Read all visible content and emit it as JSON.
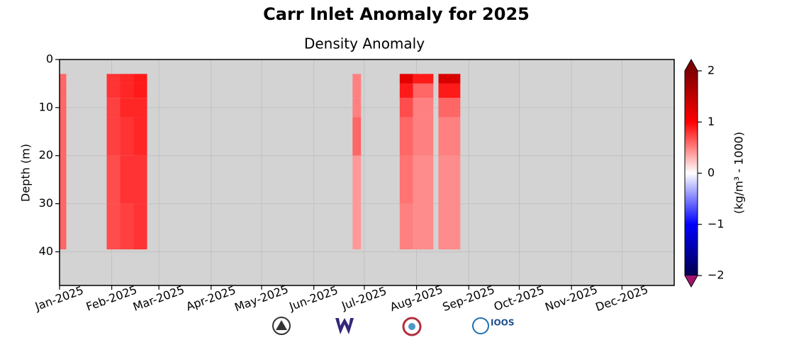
{
  "chart_data": {
    "type": "heatmap",
    "title": "Carr Inlet Anomaly for 2025",
    "subtitle": "Density Anomaly",
    "ylabel": "Depth (m)",
    "colorbar_label": "(kg/m³ - 1000)",
    "xlim": [
      "2025-01-01",
      "2026-01-01"
    ],
    "xticks": [
      {
        "value": "2025-01-01",
        "label": "Jan-2025"
      },
      {
        "value": "2025-02-01",
        "label": "Feb-2025"
      },
      {
        "value": "2025-03-01",
        "label": "Mar-2025"
      },
      {
        "value": "2025-04-01",
        "label": "Apr-2025"
      },
      {
        "value": "2025-05-01",
        "label": "May-2025"
      },
      {
        "value": "2025-06-01",
        "label": "Jun-2025"
      },
      {
        "value": "2025-07-01",
        "label": "Jul-2025"
      },
      {
        "value": "2025-08-01",
        "label": "Aug-2025"
      },
      {
        "value": "2025-09-01",
        "label": "Sep-2025"
      },
      {
        "value": "2025-10-01",
        "label": "Oct-2025"
      },
      {
        "value": "2025-11-01",
        "label": "Nov-2025"
      },
      {
        "value": "2025-12-01",
        "label": "Dec-2025"
      }
    ],
    "ylim": [
      0,
      47
    ],
    "yticks": [
      0,
      10,
      20,
      30,
      40
    ],
    "y_inverted": true,
    "grid": true,
    "background": "#d3d3d3",
    "xbins": [
      "2025-01-01",
      "2025-01-05",
      "2025-01-29",
      "2025-02-06",
      "2025-02-14",
      "2025-02-22",
      "2025-06-24",
      "2025-06-29",
      "2025-07-22",
      "2025-07-30",
      "2025-08-11",
      "2025-08-14",
      "2025-08-27"
    ],
    "ybins": [
      3,
      5,
      8,
      12,
      20,
      30,
      39.5
    ],
    "z": [
      [
        0.6,
        0.6,
        0.6,
        0.6,
        0.6,
        0.6
      ],
      [
        null,
        null,
        null,
        null,
        null,
        null
      ],
      [
        0.8,
        0.8,
        0.75,
        0.75,
        0.7,
        0.7
      ],
      [
        0.85,
        0.85,
        0.85,
        0.8,
        0.8,
        0.75
      ],
      [
        0.9,
        0.9,
        0.85,
        0.85,
        0.8,
        0.8
      ],
      [
        null,
        null,
        null,
        null,
        null,
        null
      ],
      [
        0.5,
        0.5,
        0.5,
        0.6,
        0.4,
        0.4
      ],
      [
        null,
        null,
        null,
        null,
        null,
        null
      ],
      [
        1.2,
        0.9,
        0.7,
        0.6,
        0.55,
        0.5
      ],
      [
        0.9,
        0.6,
        0.5,
        0.5,
        0.45,
        0.45
      ],
      [
        null,
        null,
        null,
        null,
        null,
        null
      ],
      [
        1.3,
        0.9,
        0.6,
        0.5,
        0.45,
        0.45
      ]
    ],
    "colormap": "seismic",
    "clim": [
      -2,
      2
    ],
    "cticks": [
      {
        "value": -2,
        "label": "−2"
      },
      {
        "value": -1,
        "label": "−1"
      },
      0,
      1,
      2
    ],
    "over_color": "#800000",
    "under_color": "#a0146e"
  },
  "logos": {
    "ioos": "IOOS"
  }
}
